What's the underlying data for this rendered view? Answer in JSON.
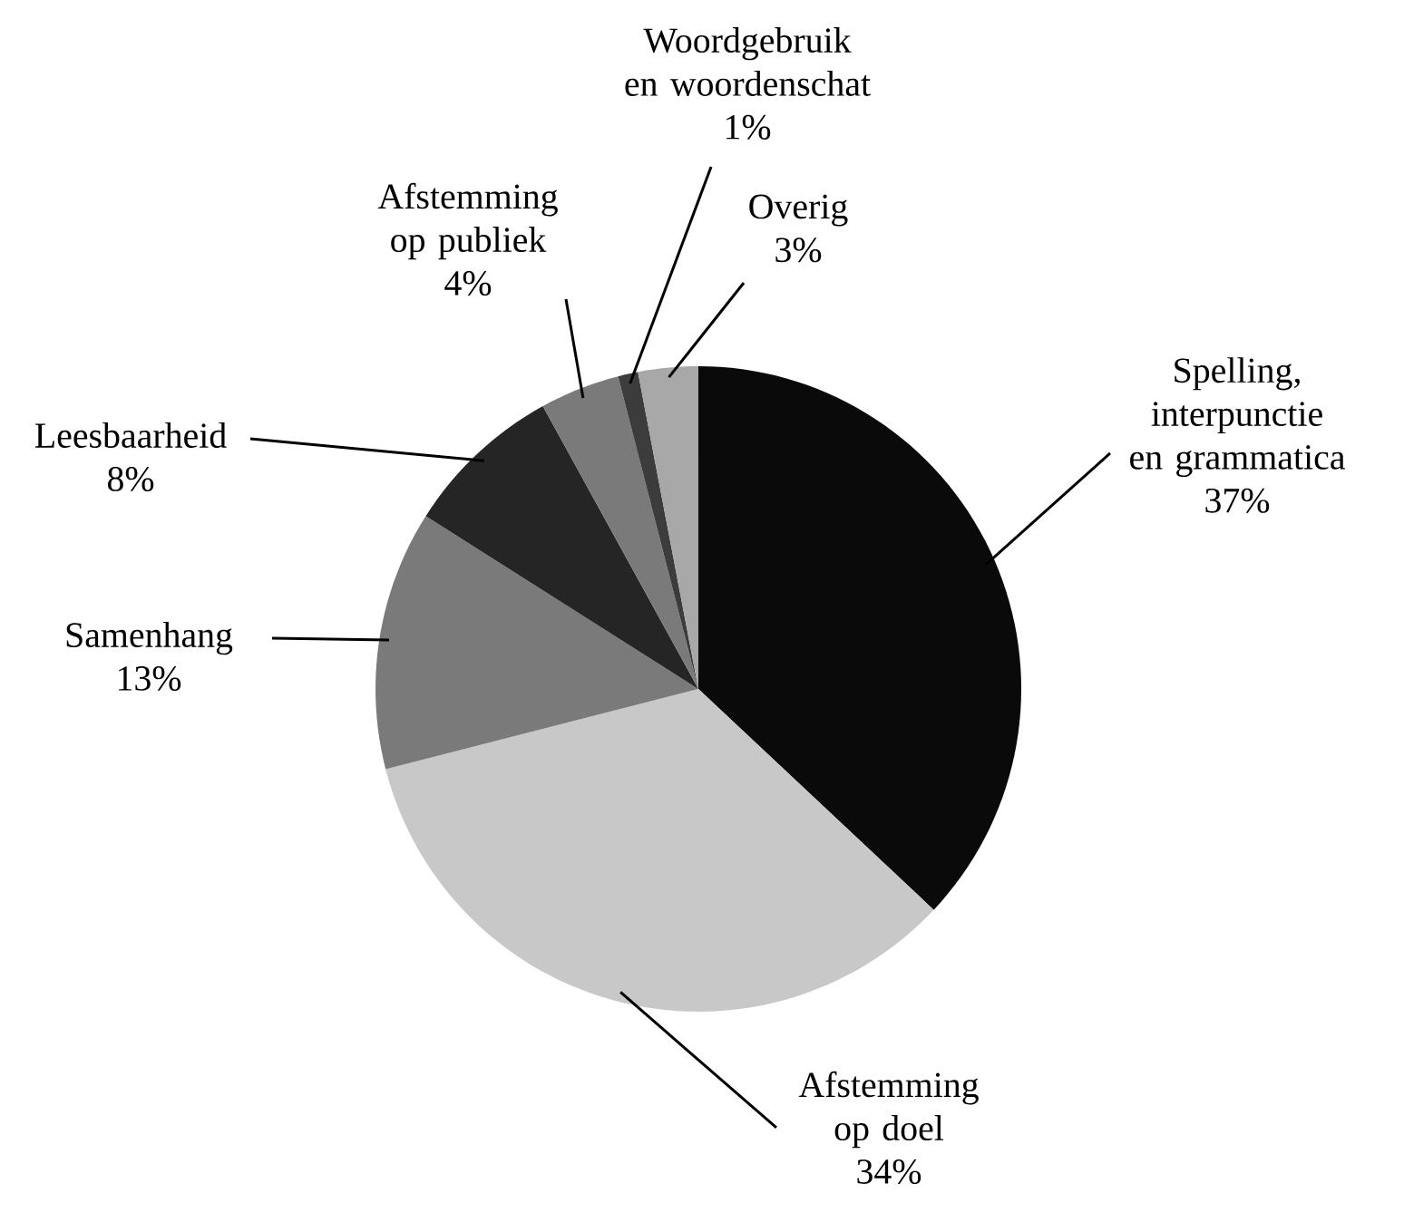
{
  "chart_data": {
    "type": "pie",
    "categories": [
      "Spelling, interpunctie en grammatica",
      "Afstemming op doel",
      "Samenhang",
      "Leesbaarheid",
      "Afstemming op publiek",
      "Woordgebruik en woordenschat",
      "Overig"
    ],
    "values": [
      37,
      34,
      13,
      8,
      4,
      1,
      3
    ],
    "value_labels": [
      "37%",
      "34%",
      "13%",
      "8%",
      "4%",
      "1%",
      "3%"
    ],
    "colors": [
      "#0a0a0a",
      "#c8c8c8",
      "#7a7a7a",
      "#252525",
      "#7a7a7a",
      "#3c3c3c",
      "#a8a8a8"
    ]
  }
}
